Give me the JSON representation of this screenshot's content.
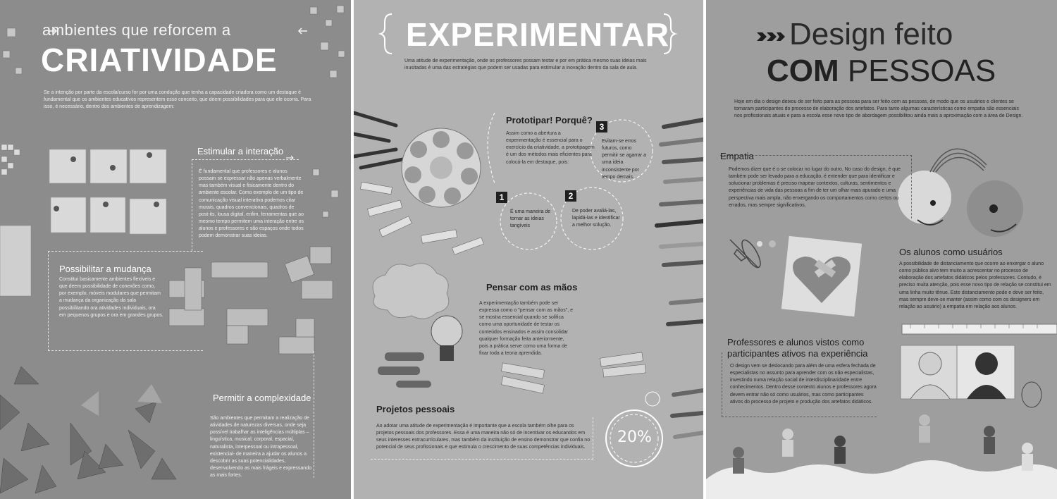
{
  "panel1": {
    "subtitle": "ambientes que reforcem a",
    "title": "CRIATIVIDADE",
    "intro": "Se a intenção por parte da escola/curso for por uma condução que tenha a capacidade criadora como um destaque é fundamental que os ambientes educativos representem esse conceito, que deem possibilidades para que ele ocorra. Para isso, é necessário, dentro dos ambientes de aprendizagem:",
    "section1": {
      "heading": "Estimular a interação",
      "body": "É fundamental que professores e alunos possam se expressar não apenas verbalmente mas também visual e fisicamente dentro do ambiente escolar. Como exemplo de um tipo de comunicação visual interativa podemos citar murais, quadros convencionais, quadros de post-its, lousa digital, enfim, ferramentas que ao mesmo tempo permitem uma interação entre os alunos e professores e são espaços onde todos podem demonstrar suas ideias."
    },
    "section2": {
      "heading": "Possibilitar a mudança",
      "body": "Constitui basicamente ambientes flexíveis e que deem possibilidade de conexões como, por exemplo, móveis modulares que permitam a mudança da organização da sala possibilitando ora atividades individuais, ora em pequenos grupos e ora em grandes grupos."
    },
    "section3": {
      "heading": "Permitir a complexidade",
      "body": "São ambientes que permitam a realização de atividades de naturezas diversas, onde seja possível trabalhar as inteligências múltiplas – linguística, musical, corporal, espacial, naturalista, interpessoal ou intrapessoal, existencial- de maneira a ajudar os alunos a descobrir as suas potencialidades, desenvolvendo as mais frágeis e expressando as mais fortes."
    }
  },
  "panel2": {
    "title": "EXPERIMENTAR",
    "intro": "Uma atitude de experimentação, onde os professores possam testar e por em prática mesmo suas ideias mais inusitadas é uma das estratégias que podem ser usadas para estimular a inovação dentro da sala de aula.",
    "prototype": {
      "heading": "Prototipar! Porquê?",
      "body": "Assim como a abertura a experimentação é essencial para o exercício da criatividade, a prototipagem é um dos métodos mais eficientes para colocá-la em destaque, pois:"
    },
    "reasons": [
      {
        "number": "1",
        "text": "É uma maneira de tornar as ideias tangíveis"
      },
      {
        "number": "2",
        "text": "De poder avaliá-las, lapidá-las e identificar a melhor solução."
      },
      {
        "number": "3",
        "text": "Evitam-se erros futuros, como permitir se agarrar a uma ideia inconsistente por tempo demais."
      }
    ],
    "hands": {
      "heading": "Pensar com as mãos",
      "body": "A experimentação também pode ser expressa como o \"pensar com as mãos\", e se mostra essencial quando se solifica como uma oportunidade de testar os conteúdos ensinados e assim consolidar qualquer formação feita anteriormente, pois a prática serve como uma forma de fixar toda a teoria aprendida."
    },
    "projects": {
      "heading": "Projetos pessoais",
      "body": "Ao adotar uma atitude de experimentação é importante que a escola também olhe para os projetos pessoais dos professores. Essa é uma maneira não só de incentivar os educandos em seus interesses extracurriculares, mas também da instituição de ensino demonstrar que confia no potencial de seus profissionais e que estimula o crescimento de suas competências individuais."
    },
    "badge": "20%"
  },
  "panel3": {
    "title_line1": "Design feito",
    "title_bold": "COM",
    "title_rest": "PESSOAS",
    "intro": "Hoje em dia o design deixou de ser feito para as pessoas para ser feito com as pessoas, de modo que os usuários e clientes se tornaram participantes do processo de elaboração dos artefatos. Para tanto algumas características como empatia são essenciais nos profissionais atuais e para a escola esse novo tipo de abordagem possibilitou ainda mais a aproximação com a área de Design.",
    "empathy": {
      "heading": "Empatia",
      "body": "Podemos dizer que é o se colocar no lugar do outro. No caso do design, é que também pode ser levado para a educação, é entender que para identificar e solucionar problemas é preciso mapear contextos, culturas, sentimentos e experiências de vida das pessoas a fim de ter um olhar mais apurado e uma perspectiva mais ampla, não enxergando os comportamentos como certos ou errados, mas sempre significativos."
    },
    "users": {
      "heading": "Os alunos como usuários",
      "body": "A possibilidade de distanciamento que ocorre ao enxergar o aluno como público alvo tem muito a acrescentar no processo de elaboração dos artefatos didáticos pelos professores. Contudo, é preciso muita atenção, pois esse novo tipo de relação se constitui em uma linha muito tênue. Este distanciamento pode e deve ser feito, mas sempre deve-se manter (assim como com os designers em relação ao usuário) a empatia em relação aos alunos."
    },
    "participants": {
      "heading": "Professores e alunos vistos como participantes ativos na experiência",
      "body": "O design vem se deslocando para além de uma esfera fechada de especialistas no assunto para aprender com os não especialistas, investindo numa relação social de interdisciplinaridade entre conhecimentos. Dentro desse contexto alunos e professores agora devem entrar não só como usuários, mas como participantes ativos do processo de projeto e produção dos artefatos didáticos."
    }
  }
}
